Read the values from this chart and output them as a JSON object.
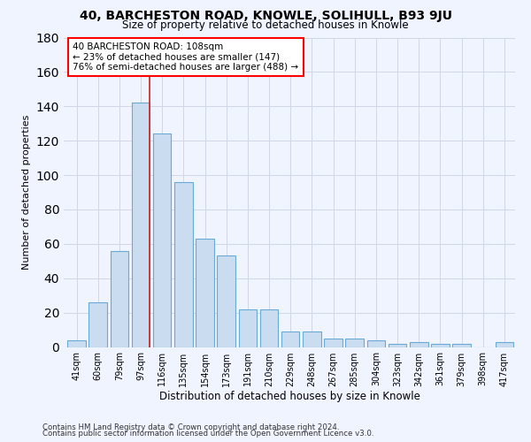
{
  "title": "40, BARCHESTON ROAD, KNOWLE, SOLIHULL, B93 9JU",
  "subtitle": "Size of property relative to detached houses in Knowle",
  "xlabel": "Distribution of detached houses by size in Knowle",
  "ylabel": "Number of detached properties",
  "bar_labels": [
    "41sqm",
    "60sqm",
    "79sqm",
    "97sqm",
    "116sqm",
    "135sqm",
    "154sqm",
    "173sqm",
    "191sqm",
    "210sqm",
    "229sqm",
    "248sqm",
    "267sqm",
    "285sqm",
    "304sqm",
    "323sqm",
    "342sqm",
    "361sqm",
    "379sqm",
    "398sqm",
    "417sqm"
  ],
  "bar_values": [
    4,
    26,
    56,
    142,
    124,
    96,
    63,
    53,
    22,
    22,
    9,
    9,
    5,
    5,
    4,
    2,
    3,
    2,
    2,
    0,
    3
  ],
  "bar_color": "#c9dcf0",
  "bar_edgecolor": "#6aaad4",
  "ylim": [
    0,
    180
  ],
  "yticks": [
    0,
    20,
    40,
    60,
    80,
    100,
    120,
    140,
    160,
    180
  ],
  "property_label": "40 BARCHESTON ROAD: 108sqm",
  "annotation_line1": "← 23% of detached houses are smaller (147)",
  "annotation_line2": "76% of semi-detached houses are larger (488) →",
  "footer_line1": "Contains HM Land Registry data © Crown copyright and database right 2024.",
  "footer_line2": "Contains public sector information licensed under the Open Government Licence v3.0.",
  "background_color": "#f0f4ff",
  "grid_color": "#d0d8e8"
}
